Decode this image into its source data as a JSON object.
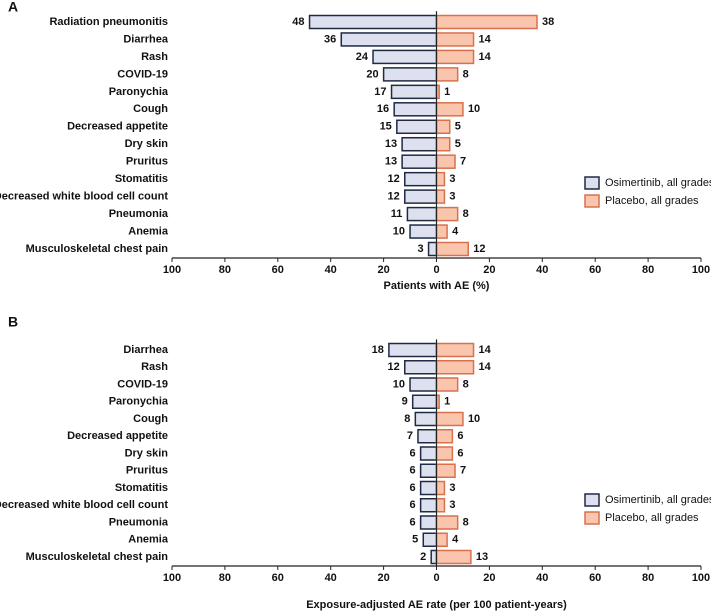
{
  "chart_data": [
    {
      "type": "butterfly",
      "label": "A",
      "categories": [
        "Radiation pneumonitis",
        "Diarrhea",
        "Rash",
        "COVID-19",
        "Paronychia",
        "Cough",
        "Decreased appetite",
        "Dry skin",
        "Pruritus",
        "Stomatitis",
        "Decreased white blood cell count",
        "Pneumonia",
        "Anemia",
        "Musculoskeletal chest pain"
      ],
      "series": [
        {
          "name": "Osimertinib, all grades",
          "color": "#dde1ef",
          "edgecolor": "#1f2a44",
          "side": "left",
          "values": [
            48,
            36,
            24,
            20,
            17,
            16,
            15,
            13,
            13,
            12,
            12,
            11,
            10,
            3
          ]
        },
        {
          "name": "Placebo, all grades",
          "color": "#f9c6ad",
          "edgecolor": "#d9714c",
          "side": "right",
          "values": [
            38,
            14,
            14,
            8,
            1,
            10,
            5,
            5,
            7,
            3,
            3,
            8,
            4,
            12
          ]
        }
      ],
      "xlabel": "Patients with AE (%)",
      "xlim": [
        -100,
        100
      ],
      "xticks": [
        {
          "value": -100,
          "label": "100"
        },
        {
          "value": -80,
          "label": "80"
        },
        {
          "value": -60,
          "label": "60"
        },
        {
          "value": -40,
          "label": "40"
        },
        {
          "value": -20,
          "label": "20"
        },
        0,
        20,
        40,
        60,
        80,
        100
      ],
      "legend": "right"
    },
    {
      "type": "butterfly",
      "label": "B",
      "categories": [
        "Diarrhea",
        "Rash",
        "COVID-19",
        "Paronychia",
        "Cough",
        "Decreased appetite",
        "Dry skin",
        "Pruritus",
        "Stomatitis",
        "Decreased white blood cell count",
        "Pneumonia",
        "Anemia",
        "Musculoskeletal chest pain"
      ],
      "series": [
        {
          "name": "Osimertinib, all grades",
          "color": "#dde1ef",
          "edgecolor": "#1f2a44",
          "side": "left",
          "values": [
            18,
            12,
            10,
            9,
            8,
            7,
            6,
            6,
            6,
            6,
            6,
            5,
            2
          ]
        },
        {
          "name": "Placebo, all grades",
          "color": "#f9c6ad",
          "edgecolor": "#d9714c",
          "side": "right",
          "values": [
            14,
            14,
            8,
            1,
            10,
            6,
            6,
            7,
            3,
            3,
            8,
            4,
            13
          ]
        }
      ],
      "xlabel": "Exposure-adjusted AE rate (per 100 patient-years)",
      "xlim": [
        -100,
        100
      ],
      "xticks": [
        {
          "value": -100,
          "label": "100"
        },
        {
          "value": -80,
          "label": "80"
        },
        {
          "value": -60,
          "label": "60"
        },
        {
          "value": -40,
          "label": "40"
        },
        {
          "value": -20,
          "label": "20"
        },
        0,
        20,
        40,
        60,
        80,
        100
      ],
      "legend": "right"
    }
  ]
}
